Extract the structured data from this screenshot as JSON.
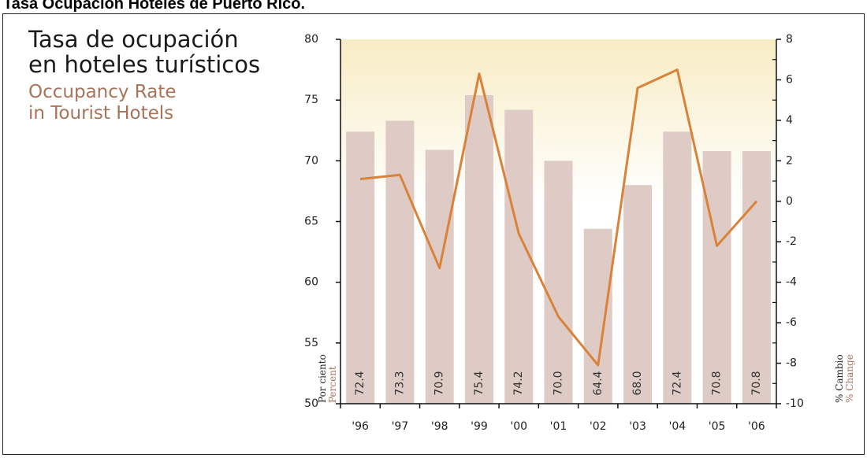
{
  "page": {
    "title": "Tasa Ocupación Hoteles de Puerto Rico."
  },
  "chart_title": {
    "es": [
      "Tasa de ocupación",
      "en hoteles turísticos"
    ],
    "en": [
      "Occupancy Rate",
      "in Tourist Hotels"
    ]
  },
  "colors": {
    "bar": "#dfcbc6",
    "line": "#d9823a",
    "bg_top": "#f8ecc4",
    "accent_text": "#a9735a"
  },
  "chart_data": {
    "type": "bar",
    "categories": [
      "'96",
      "'97",
      "'98",
      "'99",
      "'00",
      "'01",
      "'02",
      "'03",
      "'04",
      "'05",
      "'06"
    ],
    "bar_values": [
      72.4,
      73.3,
      70.9,
      75.4,
      74.2,
      70.0,
      64.4,
      68.0,
      72.4,
      70.8,
      70.8
    ],
    "bar_value_labels": [
      "72.4",
      "73.3",
      "70.9",
      "75.4",
      "74.2",
      "70.0",
      "64.4",
      "68.0",
      "72.4",
      "70.8",
      "70.8"
    ],
    "line_values": [
      1.1,
      1.3,
      -3.3,
      6.3,
      -1.6,
      -5.7,
      -8.1,
      5.6,
      6.5,
      -2.2,
      0.0
    ],
    "left_axis": {
      "min": 50,
      "max": 80,
      "ticks": [
        50,
        55,
        60,
        65,
        70,
        75,
        80
      ],
      "label_es": "Por ciento",
      "label_en": "Percent"
    },
    "right_axis": {
      "min": -10,
      "max": 8,
      "ticks": [
        -10,
        -8,
        -6,
        -4,
        -2,
        0,
        2,
        4,
        6,
        8
      ],
      "label_es": "% Cambio",
      "label_en": "% Change"
    },
    "grid": false,
    "legend": "none"
  }
}
